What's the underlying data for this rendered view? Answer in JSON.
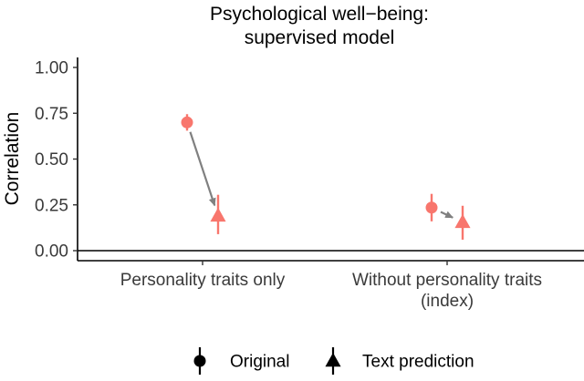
{
  "chart_data": {
    "type": "scatter",
    "title": [
      "Psychological well−being:",
      "supervised model"
    ],
    "ylabel": "Correlation",
    "xlabel": "",
    "ylim": [
      0,
      1
    ],
    "y_ticks": [
      "0.00",
      "0.25",
      "0.50",
      "0.75",
      "1.00"
    ],
    "y_tick_values": [
      0,
      0.25,
      0.5,
      0.75,
      1
    ],
    "categories": [
      [
        "Personality traits only"
      ],
      [
        "Without personality traits",
        "(index)"
      ]
    ],
    "series": [
      {
        "name": "Original",
        "shape": "circle",
        "values": [
          0.7,
          0.235
        ],
        "ci_low": [
          0.655,
          0.16
        ],
        "ci_high": [
          0.745,
          0.31
        ]
      },
      {
        "name": "Text prediction",
        "shape": "triangle",
        "values": [
          0.19,
          0.155
        ],
        "ci_low": [
          0.09,
          0.06
        ],
        "ci_high": [
          0.305,
          0.245
        ]
      }
    ],
    "arrows": "Original → Text prediction",
    "grid": false,
    "reference_line": 0,
    "legend_position": "bottom",
    "colors": {
      "points": "#F8766D",
      "arrow": "#808080",
      "legend": "#000000",
      "axis": "#000000"
    }
  }
}
